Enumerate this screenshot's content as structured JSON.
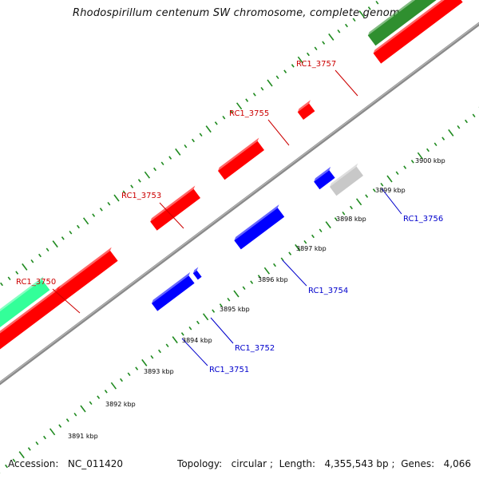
{
  "title": "Rhodospirillum centenum SW chromosome, complete genome",
  "footer": {
    "accession_label": "Accession:",
    "accession": "NC_011420",
    "topology_label": "Topology:",
    "topology": "circular",
    "length_label": "Length:",
    "length": "4,355,543 bp",
    "genes_label": "Genes:",
    "genes": "4,066"
  },
  "colors": {
    "forward_gene": "#ff0000",
    "reverse_gene": "#0000ff",
    "pseudo_gene": "#c8c8c8",
    "rna_gene": "#2f8f2f",
    "other_feature": "#33ff99",
    "backbone": "#8a8a8a",
    "ticks": "#1f8a1f",
    "forward_label": "#cc0000",
    "reverse_label": "#0000cc",
    "tick_label": "#000000"
  },
  "tick_labels": [
    "3891 kbp",
    "3892 kbp",
    "3893 kbp",
    "3894 kbp",
    "3895 kbp",
    "3896 kbp",
    "3897 kbp",
    "3898 kbp",
    "3899 kbp",
    "3900 kbp"
  ],
  "genes": [
    {
      "id": "RC1_3750",
      "strand": "forward"
    },
    {
      "id": "RC1_3751",
      "strand": "reverse"
    },
    {
      "id": "RC1_3752",
      "strand": "reverse"
    },
    {
      "id": "RC1_3753",
      "strand": "forward"
    },
    {
      "id": "RC1_3754",
      "strand": "reverse"
    },
    {
      "id": "RC1_3755",
      "strand": "forward"
    },
    {
      "id": "RC1_3756",
      "strand": "reverse"
    },
    {
      "id": "RC1_3757",
      "strand": "forward"
    }
  ]
}
